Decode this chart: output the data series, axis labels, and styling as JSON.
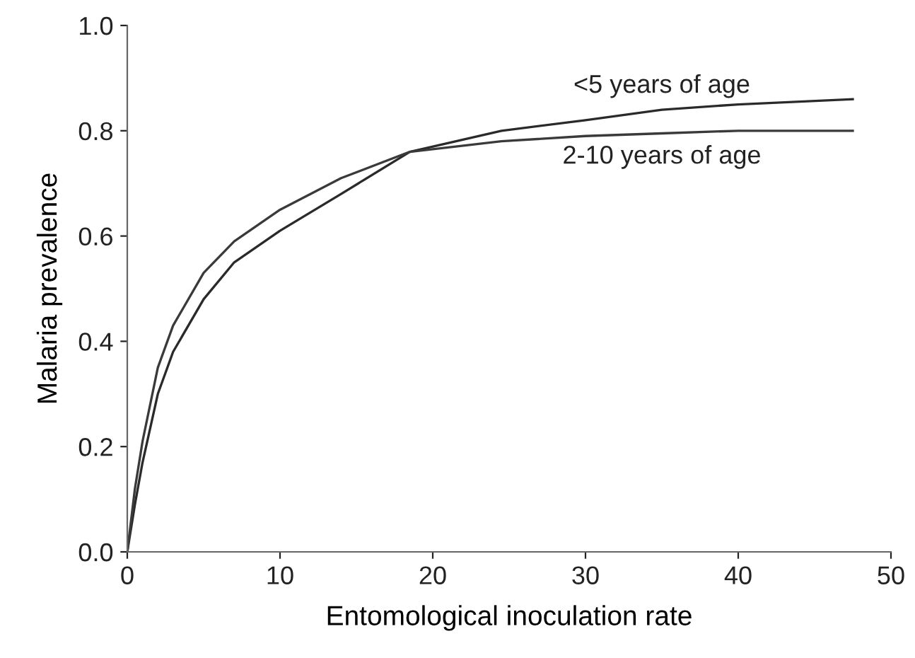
{
  "chart_data": {
    "type": "line",
    "xlabel": "Entomological inoculation rate",
    "ylabel": "Malaria prevalence",
    "xlim": [
      0,
      50
    ],
    "xticks": [
      0,
      10,
      20,
      30,
      40,
      50
    ],
    "ylim": [
      0,
      1.0
    ],
    "yticks": [
      {
        "value": 0,
        "label": "0.0"
      },
      {
        "value": 0.2,
        "label": "0.2"
      },
      {
        "value": 0.4,
        "label": "0.4"
      },
      {
        "value": 0.6,
        "label": "0.6"
      },
      {
        "value": 0.8,
        "label": "0.8"
      },
      {
        "value": 1.0,
        "label": "1.0"
      }
    ],
    "grid": false,
    "legend": false,
    "series": [
      {
        "name": "<5 years of age",
        "color": "#2a2a2a",
        "x": [
          0,
          0.5,
          1,
          2,
          3,
          5,
          7,
          10,
          14,
          18.5,
          24.5,
          30,
          35,
          40,
          47.5
        ],
        "values": [
          0,
          0.09,
          0.17,
          0.3,
          0.38,
          0.48,
          0.55,
          0.61,
          0.68,
          0.76,
          0.8,
          0.82,
          0.84,
          0.85,
          0.86
        ]
      },
      {
        "name": "2-10 years of age",
        "color": "#3a3a3a",
        "x": [
          0,
          0.5,
          1,
          2,
          3,
          5,
          7,
          10,
          14,
          18.5,
          24.5,
          30,
          35,
          40,
          47.5
        ],
        "values": [
          0,
          0.12,
          0.21,
          0.35,
          0.43,
          0.53,
          0.59,
          0.65,
          0.71,
          0.76,
          0.78,
          0.79,
          0.795,
          0.8,
          0.8
        ]
      }
    ]
  }
}
